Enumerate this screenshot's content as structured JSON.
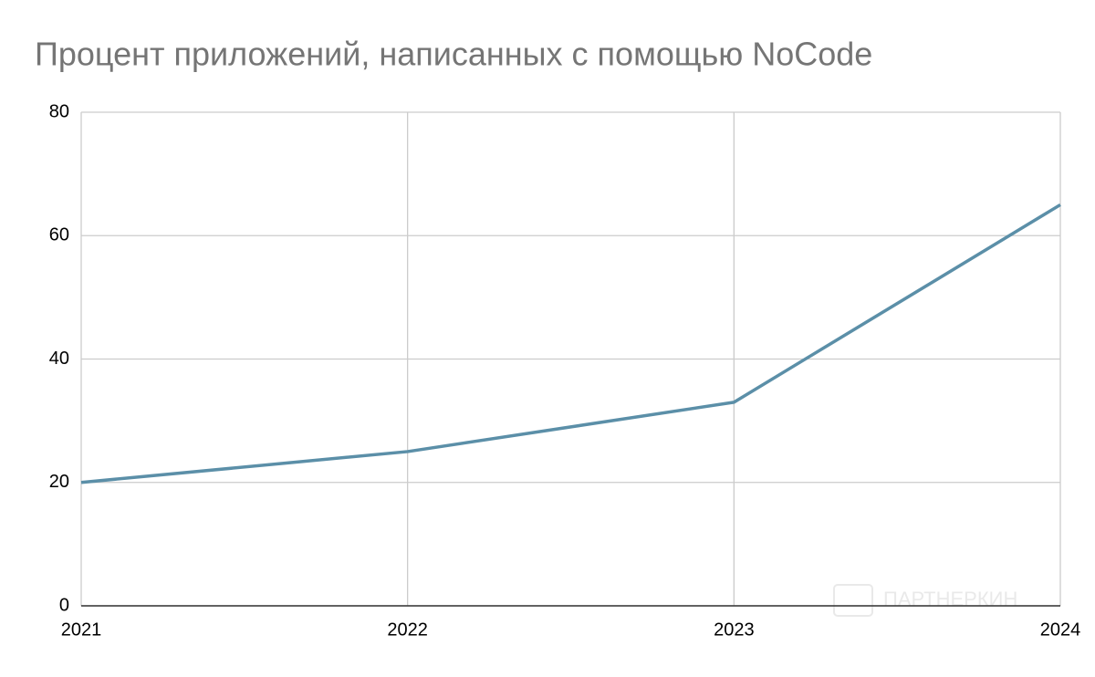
{
  "chart_data": {
    "type": "line",
    "title": "Процент приложений, написанных с помощью NoCode",
    "x": [
      2021,
      2022,
      2023,
      2024
    ],
    "series": [
      {
        "name": "Процент",
        "color": "#5b8fa8",
        "values": [
          20,
          25,
          33,
          65
        ]
      }
    ],
    "xlim": [
      2021,
      2024
    ],
    "xticks": [
      2021,
      2022,
      2023,
      2024
    ],
    "ylim": [
      0,
      80
    ],
    "yticks": [
      0,
      20,
      40,
      60,
      80
    ],
    "grid": true,
    "watermark": "ПАРТНЕРКИН"
  }
}
